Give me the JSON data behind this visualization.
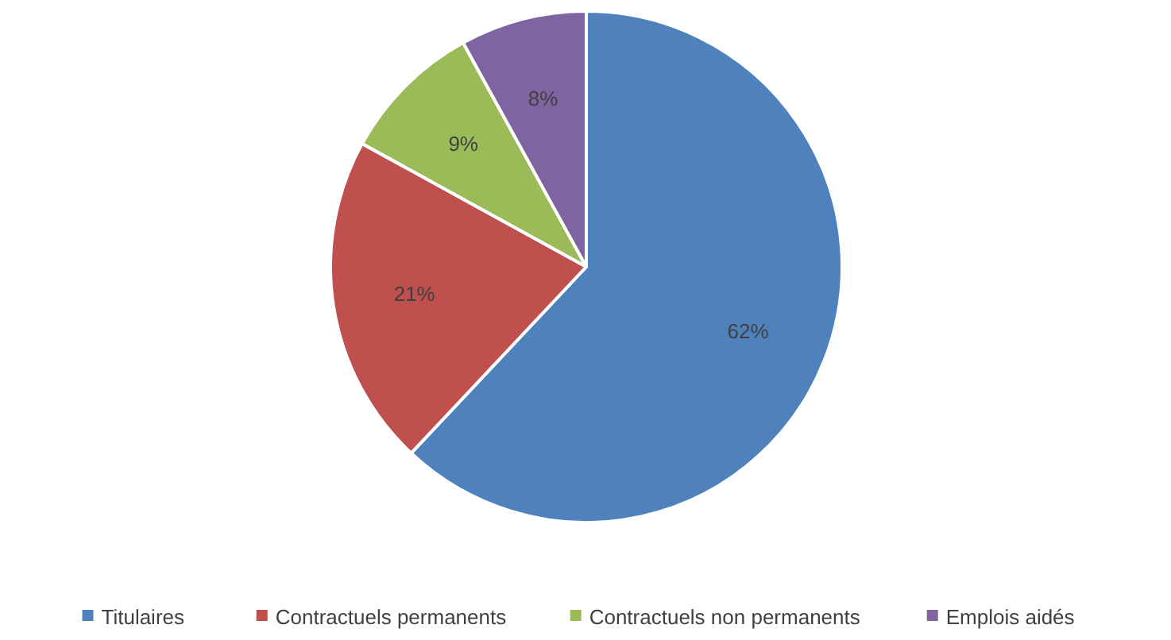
{
  "chart_data": {
    "type": "pie",
    "categories": [
      "Titulaires",
      "Contractuels permanents",
      "Contractuels non permanents",
      "Emplois aidés"
    ],
    "values": [
      62,
      21,
      9,
      8
    ],
    "colors": [
      "#4f81bd",
      "#c0504d",
      "#9bbb59",
      "#8064a2"
    ],
    "value_labels": [
      "62%",
      "21%",
      "9%",
      "8%"
    ],
    "legend": "bottom"
  }
}
